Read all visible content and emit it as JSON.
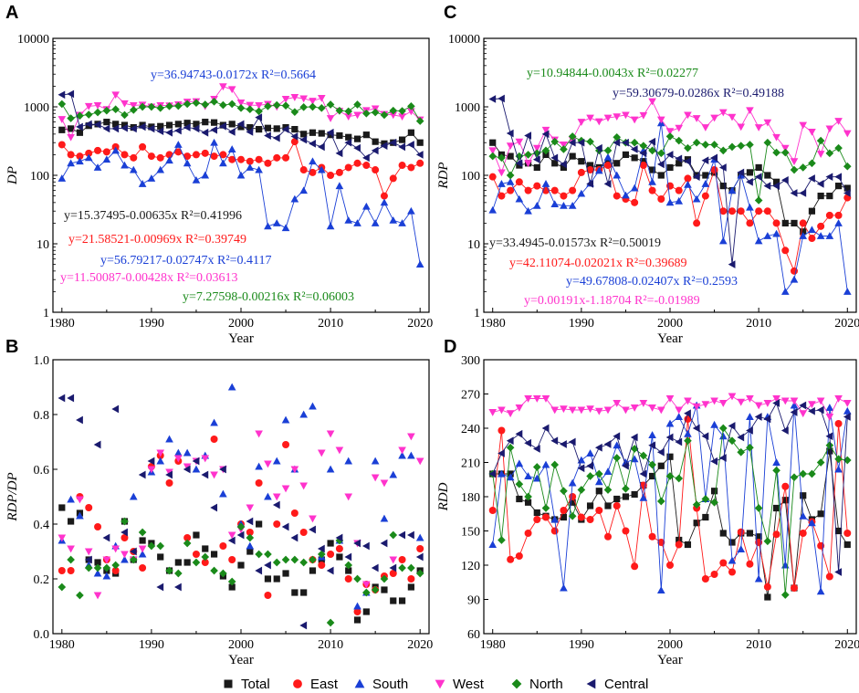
{
  "colors": {
    "Total": "#1a1a1a",
    "East": "#ff1a1a",
    "South": "#1a3fd6",
    "West": "#ff33cc",
    "North": "#1a8a1a",
    "Central": "#1a1a6e"
  },
  "legend": [
    {
      "name": "Total",
      "marker": "square"
    },
    {
      "name": "East",
      "marker": "circle"
    },
    {
      "name": "South",
      "marker": "triangle-up"
    },
    {
      "name": "West",
      "marker": "triangle-down"
    },
    {
      "name": "North",
      "marker": "diamond"
    },
    {
      "name": "Central",
      "marker": "triangle-left"
    }
  ],
  "chart_data": [
    {
      "panel": "A",
      "type": "scatter",
      "yscale": "log",
      "title": "",
      "xlabel": "Year",
      "ylabel": "DP",
      "xlim": [
        1979,
        2021
      ],
      "ylim": [
        1,
        10000
      ],
      "xticks": [
        "1980",
        "1990",
        "2000",
        "2010",
        "2020"
      ],
      "yticks": [
        "1",
        "10",
        "100",
        "1000",
        "10000"
      ],
      "lines": true,
      "series": {
        "Total": [
          460,
          480,
          420,
          530,
          560,
          600,
          560,
          540,
          500,
          540,
          510,
          520,
          540,
          560,
          580,
          560,
          600,
          590,
          540,
          560,
          510,
          500,
          470,
          490,
          480,
          500,
          470,
          400,
          420,
          410,
          390,
          380,
          360,
          340,
          390,
          310,
          290,
          300,
          330,
          420,
          300
        ],
        "East": [
          280,
          200,
          190,
          210,
          230,
          220,
          260,
          200,
          180,
          260,
          190,
          180,
          200,
          220,
          190,
          200,
          210,
          190,
          200,
          170,
          170,
          160,
          170,
          150,
          180,
          180,
          310,
          120,
          110,
          130,
          100,
          110,
          130,
          150,
          140,
          120,
          50,
          90,
          140,
          130,
          150
        ],
        "South": [
          90,
          150,
          160,
          180,
          130,
          170,
          230,
          140,
          120,
          75,
          90,
          120,
          165,
          280,
          150,
          85,
          100,
          300,
          150,
          240,
          100,
          130,
          120,
          18,
          20,
          17,
          45,
          60,
          160,
          120,
          18,
          70,
          22,
          20,
          35,
          20,
          40,
          22,
          20,
          30,
          5
        ],
        "West": [
          660,
          360,
          760,
          1020,
          1050,
          920,
          1500,
          1120,
          1050,
          1070,
          1000,
          1050,
          1040,
          1080,
          1180,
          1200,
          1020,
          1300,
          1980,
          1800,
          1150,
          1060,
          1050,
          1100,
          1000,
          1300,
          1380,
          1320,
          1220,
          1340,
          680,
          870,
          720,
          760,
          890,
          940,
          780,
          760,
          720,
          860,
          650
        ],
        "North": [
          1100,
          680,
          740,
          770,
          830,
          880,
          920,
          760,
          900,
          1000,
          1000,
          960,
          1020,
          1030,
          1100,
          1140,
          1080,
          1190,
          1060,
          1100,
          960,
          920,
          860,
          1020,
          1060,
          1040,
          840,
          990,
          1000,
          960,
          1080,
          880,
          860,
          1080,
          800,
          830,
          760,
          880,
          870,
          1020,
          620
        ],
        "Central": [
          1500,
          1540,
          510,
          560,
          550,
          480,
          480,
          490,
          480,
          510,
          480,
          440,
          420,
          450,
          500,
          480,
          420,
          460,
          520,
          430,
          560,
          430,
          700,
          380,
          350,
          470,
          370,
          330,
          290,
          260,
          420,
          210,
          300,
          250,
          180,
          230,
          270,
          300,
          260,
          280,
          200
        ]
      },
      "annotations": [
        {
          "text": "y=36.94743-0.0172x  R²=0.5664",
          "color": "South"
        },
        {
          "text": "y=15.37495-0.00635x  R²=0.41996",
          "color": "Total"
        },
        {
          "text": "y=21.58521-0.00969x  R²=0.39749",
          "color": "East"
        },
        {
          "text": "y=56.79217-0.02747x  R²=0.4117",
          "color": "South"
        },
        {
          "text": "y=11.50087-0.00428x  R²=0.03613",
          "color": "West"
        },
        {
          "text": "y=7.27598-0.00216x  R²=0.06003",
          "color": "North"
        }
      ]
    },
    {
      "panel": "B",
      "type": "scatter",
      "yscale": "linear",
      "title": "",
      "xlabel": "Year",
      "ylabel": "RDP/DP",
      "xlim": [
        1979,
        2021
      ],
      "ylim": [
        0,
        1
      ],
      "xticks": [
        "1980",
        "1990",
        "2000",
        "2010",
        "2020"
      ],
      "yticks": [
        "0.0",
        "0.2",
        "0.4",
        "0.6",
        "0.8",
        "1.0"
      ],
      "lines": false,
      "series": {
        "Total": [
          0.46,
          0.41,
          0.44,
          0.27,
          0.26,
          0.23,
          0.22,
          0.41,
          0.27,
          0.34,
          0.33,
          0.28,
          0.23,
          0.26,
          0.26,
          0.36,
          0.31,
          0.29,
          0.21,
          0.17,
          0.25,
          0.3,
          0.4,
          0.2,
          0.2,
          0.22,
          0.15,
          0.15,
          0.23,
          0.27,
          0.33,
          0.28,
          0.23,
          0.05,
          0.08,
          0.17,
          0.16,
          0.12,
          0.12,
          0.17,
          0.23
        ],
        "East": [
          0.23,
          0.23,
          0.5,
          0.46,
          0.39,
          0.27,
          0.23,
          0.35,
          0.3,
          0.24,
          0.61,
          0.65,
          0.55,
          0.63,
          0.35,
          0.29,
          0.26,
          0.71,
          0.32,
          0.27,
          0.4,
          0.37,
          0.55,
          0.14,
          0.4,
          0.69,
          0.44,
          0.37,
          0.27,
          0.25,
          0.29,
          0.31,
          0.2,
          0.08,
          0.18,
          0.16,
          0.21,
          0.22,
          0.27,
          0.2,
          0.31
        ],
        "South": [
          0.34,
          0.49,
          0.43,
          0.25,
          0.22,
          0.21,
          0.32,
          0.27,
          0.5,
          0.29,
          0.59,
          0.63,
          0.71,
          0.66,
          0.66,
          0.6,
          0.65,
          0.77,
          0.51,
          0.9,
          0.4,
          0.32,
          0.61,
          0.5,
          0.63,
          0.78,
          0.6,
          0.8,
          0.83,
          0.28,
          0.6,
          0.34,
          0.63,
          0.1,
          0.15,
          0.63,
          0.42,
          0.58,
          0.65,
          0.65,
          0.35
        ],
        "West": [
          0.35,
          0.31,
          0.49,
          0.3,
          0.14,
          0.27,
          0.31,
          0.29,
          0.27,
          0.31,
          0.6,
          0.66,
          0.59,
          0.64,
          0.61,
          0.63,
          0.64,
          0.58,
          0.6,
          0.36,
          0.38,
          0.46,
          0.73,
          0.62,
          0.5,
          0.53,
          0.6,
          0.54,
          0.42,
          0.66,
          0.73,
          0.67,
          0.5,
          0.33,
          0.18,
          0.57,
          0.55,
          0.27,
          0.67,
          0.72,
          0.63
        ],
        "North": [
          0.17,
          0.27,
          0.14,
          0.24,
          0.24,
          0.24,
          0.25,
          0.41,
          0.27,
          0.37,
          0.32,
          0.32,
          0.23,
          0.22,
          0.33,
          0.26,
          0.28,
          0.23,
          0.22,
          0.19,
          0.39,
          0.35,
          0.29,
          0.29,
          0.26,
          0.27,
          0.27,
          0.26,
          0.27,
          0.29,
          0.04,
          0.34,
          0.25,
          0.2,
          0.15,
          0.16,
          0.2,
          0.36,
          0.24,
          0.24,
          0.22
        ],
        "Central": [
          0.86,
          0.86,
          0.78,
          0.27,
          0.69,
          0.35,
          0.82,
          0.37,
          0.3,
          0.58,
          0.63,
          0.17,
          0.58,
          0.17,
          0.6,
          0.63,
          0.58,
          0.46,
          0.6,
          0.34,
          0.36,
          0.41,
          0.23,
          0.25,
          0.47,
          0.39,
          0.35,
          0.03,
          0.38,
          0.31,
          0.23,
          0.35,
          0.28,
          0.33,
          0.32,
          0.24,
          0.33,
          0.24,
          0.36,
          0.36,
          0.28
        ]
      }
    },
    {
      "panel": "C",
      "type": "scatter",
      "yscale": "log",
      "title": "",
      "xlabel": "Year",
      "ylabel": "RDP",
      "xlim": [
        1979,
        2021
      ],
      "ylim": [
        1,
        10000
      ],
      "xticks": [
        "1980",
        "1990",
        "2000",
        "2010",
        "2020"
      ],
      "yticks": [
        "1",
        "10",
        "100",
        "1000",
        "10000"
      ],
      "lines": true,
      "series": {
        "Total": [
          300,
          200,
          190,
          140,
          150,
          130,
          200,
          150,
          130,
          190,
          160,
          140,
          130,
          150,
          150,
          200,
          180,
          160,
          120,
          100,
          130,
          150,
          170,
          100,
          100,
          110,
          70,
          60,
          100,
          110,
          130,
          100,
          80,
          20,
          20,
          15,
          30,
          50,
          50,
          70,
          65
        ],
        "East": [
          95,
          50,
          60,
          80,
          60,
          70,
          60,
          60,
          50,
          60,
          110,
          120,
          120,
          140,
          50,
          45,
          40,
          140,
          60,
          45,
          70,
          60,
          90,
          20,
          50,
          120,
          30,
          30,
          30,
          20,
          30,
          30,
          20,
          8,
          4,
          20,
          12,
          18,
          26,
          26,
          47
        ],
        "South": [
          31,
          75,
          80,
          45,
          30,
          36,
          75,
          38,
          36,
          36,
          54,
          76,
          117,
          184,
          100,
          51,
          65,
          230,
          80,
          580,
          40,
          42,
          73,
          45,
          75,
          170,
          11,
          60,
          100,
          34,
          11,
          13,
          14,
          2,
          3,
          13,
          16,
          13,
          13,
          20,
          2
        ],
        "West": [
          230,
          110,
          270,
          310,
          150,
          250,
          460,
          330,
          280,
          330,
          600,
          690,
          610,
          690,
          720,
          760,
          650,
          750,
          1200,
          650,
          440,
          490,
          760,
          680,
          500,
          690,
          830,
          710,
          510,
          890,
          500,
          590,
          360,
          250,
          160,
          540,
          430,
          205,
          480,
          620,
          410
        ],
        "North": [
          190,
          180,
          100,
          190,
          200,
          210,
          230,
          310,
          240,
          370,
          320,
          310,
          230,
          230,
          360,
          300,
          300,
          270,
          230,
          210,
          370,
          320,
          250,
          300,
          280,
          280,
          230,
          260,
          270,
          280,
          43,
          300,
          215,
          215,
          120,
          130,
          150,
          320,
          210,
          250,
          135
        ],
        "Central": [
          1300,
          1320,
          410,
          150,
          380,
          170,
          400,
          180,
          145,
          300,
          300,
          75,
          250,
          75,
          300,
          300,
          240,
          210,
          310,
          145,
          200,
          175,
          160,
          95,
          165,
          180,
          130,
          5,
          110,
          80,
          95,
          70,
          70,
          85,
          55,
          55,
          90,
          75,
          95,
          95,
          55
        ]
      },
      "annotations": [
        {
          "text": "y=10.94844-0.0043x  R²=0.02277",
          "color": "North"
        },
        {
          "text": "y=59.30679-0.0286x  R²=0.49188",
          "color": "Central"
        },
        {
          "text": "y=33.4945-0.01573x  R²=0.50019",
          "color": "Total"
        },
        {
          "text": "y=42.11074-0.02021x  R²=0.39689",
          "color": "East"
        },
        {
          "text": "y=49.67808-0.02407x  R²=0.2593",
          "color": "South"
        },
        {
          "text": "y=0.00191x-1.18704  R²=-0.01989",
          "color": "West"
        }
      ]
    },
    {
      "panel": "D",
      "type": "scatter",
      "yscale": "linear",
      "title": "",
      "xlabel": "Year",
      "ylabel": "RDD",
      "xlim": [
        1979,
        2021
      ],
      "ylim": [
        60,
        300
      ],
      "xticks": [
        "1980",
        "1990",
        "2000",
        "2010",
        "2020"
      ],
      "yticks": [
        "60",
        "90",
        "120",
        "150",
        "180",
        "210",
        "240",
        "270",
        "300"
      ],
      "lines": true,
      "series": {
        "Total": [
          200,
          200,
          200,
          178,
          175,
          166,
          163,
          160,
          162,
          175,
          160,
          172,
          185,
          172,
          178,
          180,
          182,
          190,
          198,
          207,
          215,
          142,
          138,
          157,
          162,
          185,
          148,
          140,
          148,
          148,
          145,
          92,
          170,
          177,
          100,
          181,
          160,
          165,
          220,
          150,
          138
        ],
        "East": [
          168,
          238,
          125,
          128,
          148,
          160,
          162,
          150,
          168,
          180,
          162,
          160,
          168,
          145,
          172,
          150,
          119,
          190,
          145,
          140,
          120,
          138,
          248,
          170,
          108,
          112,
          122,
          114,
          149,
          121,
          140,
          101,
          147,
          189,
          100,
          148,
          158,
          137,
          110,
          244,
          148
        ],
        "South": [
          138,
          200,
          197,
          209,
          198,
          196,
          208,
          160,
          100,
          192,
          212,
          218,
          193,
          202,
          225,
          210,
          213,
          179,
          234,
          98,
          244,
          250,
          235,
          260,
          178,
          243,
          233,
          124,
          134,
          250,
          108,
          250,
          210,
          120,
          260,
          163,
          157,
          97,
          258,
          204,
          255
        ],
        "West": [
          254,
          256,
          253,
          258,
          266,
          266,
          266,
          256,
          257,
          256,
          256,
          257,
          255,
          256,
          262,
          256,
          258,
          262,
          258,
          256,
          266,
          256,
          264,
          259,
          261,
          264,
          262,
          268,
          263,
          266,
          260,
          262,
          266,
          264,
          264,
          253,
          261,
          264,
          250,
          266,
          262
        ],
        "North": [
          200,
          142,
          223,
          191,
          180,
          206,
          170,
          208,
          185,
          163,
          186,
          198,
          200,
          186,
          214,
          187,
          222,
          216,
          208,
          176,
          198,
          196,
          229,
          173,
          178,
          175,
          240,
          229,
          219,
          223,
          170,
          141,
          203,
          94,
          197,
          200,
          200,
          210,
          225,
          213,
          212
        ],
        "Central": [
          200,
          218,
          229,
          235,
          227,
          222,
          240,
          229,
          226,
          228,
          205,
          207,
          223,
          226,
          233,
          207,
          232,
          200,
          225,
          219,
          232,
          228,
          253,
          240,
          233,
          211,
          214,
          242,
          232,
          238,
          250,
          248,
          262,
          238,
          254,
          260,
          255,
          256,
          233,
          114,
          250
        ]
      }
    }
  ]
}
